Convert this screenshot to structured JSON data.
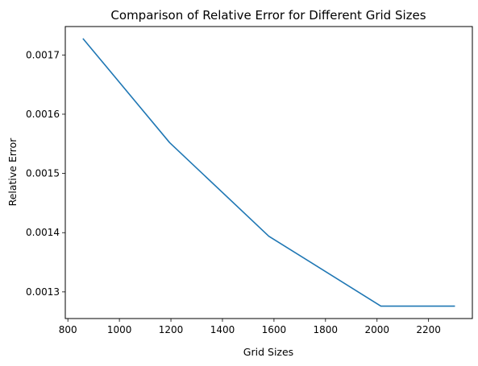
{
  "chart_data": {
    "type": "line",
    "title": "Comparison of Relative Error for Different Grid Sizes",
    "xlabel": "Grid Sizes",
    "ylabel": "Relative Error",
    "xlim": [
      790,
      2370
    ],
    "ylim": [
      0.001255,
      0.001748
    ],
    "xticks": [
      800,
      1000,
      1200,
      1400,
      1600,
      1800,
      2000,
      2200
    ],
    "xtick_labels": [
      "800",
      "1000",
      "1200",
      "1400",
      "1600",
      "1800",
      "2000",
      "2200"
    ],
    "yticks": [
      0.0013,
      0.0014,
      0.0015,
      0.0016,
      0.0017
    ],
    "ytick_labels": [
      "0.0013",
      "0.0014",
      "0.0015",
      "0.0016",
      "0.0017"
    ],
    "grid": false,
    "series": [
      {
        "color": "#1f77b4",
        "x": [
          860,
          1195,
          1580,
          2015,
          2300
        ],
        "y": [
          0.001727,
          0.001552,
          0.001394,
          0.001276,
          0.001276
        ]
      }
    ]
  }
}
